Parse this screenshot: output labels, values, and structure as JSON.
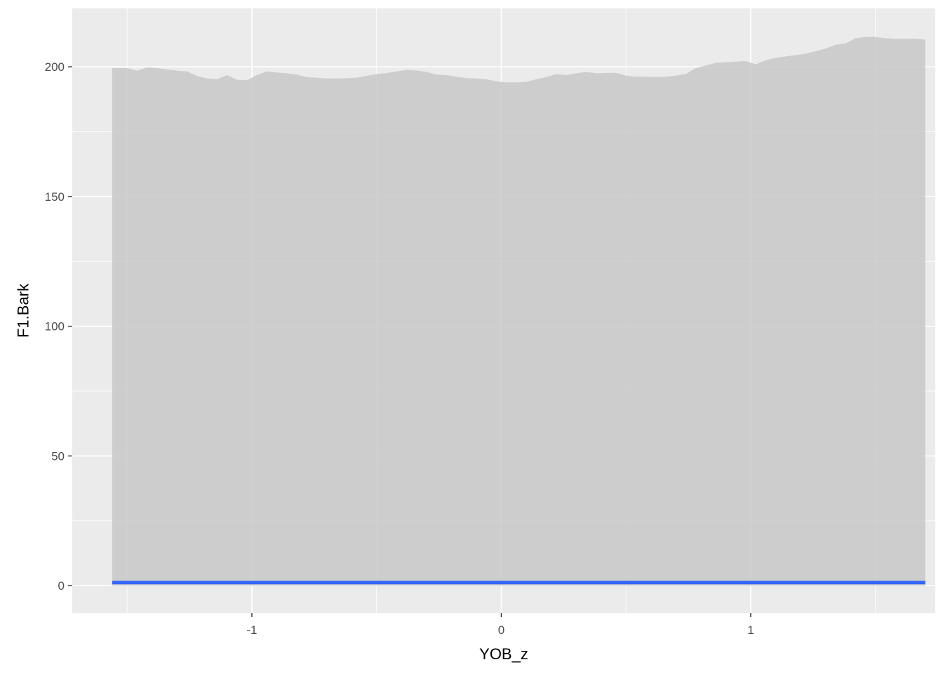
{
  "chart_data": {
    "type": "area",
    "title": "",
    "xlabel": "YOB_z",
    "ylabel": "F1.Bark",
    "xlim": [
      -1.72,
      1.74
    ],
    "ylim": [
      -10.5,
      222.5
    ],
    "x_ticks": [
      -1,
      0,
      1
    ],
    "x_tick_labels": [
      "-1",
      "0",
      "1"
    ],
    "y_ticks": [
      0,
      50,
      100,
      150,
      200
    ],
    "y_tick_labels": [
      "0",
      "50",
      "100",
      "150",
      "200"
    ],
    "grid": true,
    "legend": "none",
    "colors": {
      "panel_background": "#ebebeb",
      "grid_major": "#ffffff",
      "ribbon": "#c8c8c8",
      "line": "#3366ff"
    },
    "series": [
      {
        "kind": "ribbon",
        "x": [
          -1.56,
          -1.5,
          -1.46,
          -1.42,
          -1.38,
          -1.34,
          -1.3,
          -1.26,
          -1.22,
          -1.18,
          -1.14,
          -1.1,
          -1.06,
          -1.02,
          -0.98,
          -0.94,
          -0.9,
          -0.86,
          -0.82,
          -0.78,
          -0.74,
          -0.7,
          -0.66,
          -0.62,
          -0.58,
          -0.54,
          -0.5,
          -0.46,
          -0.42,
          -0.38,
          -0.34,
          -0.3,
          -0.26,
          -0.22,
          -0.18,
          -0.14,
          -0.1,
          -0.06,
          -0.02,
          0.02,
          0.06,
          0.1,
          0.14,
          0.18,
          0.22,
          0.26,
          0.3,
          0.34,
          0.38,
          0.42,
          0.46,
          0.5,
          0.54,
          0.58,
          0.62,
          0.66,
          0.7,
          0.74,
          0.78,
          0.82,
          0.86,
          0.9,
          0.94,
          0.98,
          1.02,
          1.06,
          1.1,
          1.14,
          1.18,
          1.22,
          1.26,
          1.3,
          1.34,
          1.38,
          1.42,
          1.46,
          1.5,
          1.54,
          1.58,
          1.62,
          1.66,
          1.7
        ],
        "upper": [
          199.5,
          199.5,
          198.5,
          199.8,
          199.5,
          199.0,
          198.5,
          198.2,
          196.5,
          195.5,
          195.2,
          196.8,
          195.0,
          194.8,
          196.8,
          198.2,
          197.8,
          197.5,
          197.0,
          196.0,
          195.8,
          195.5,
          195.5,
          195.6,
          195.8,
          196.5,
          197.2,
          197.6,
          198.2,
          198.8,
          198.6,
          198.0,
          197.0,
          196.8,
          196.2,
          195.6,
          195.5,
          195.2,
          194.4,
          194.0,
          194.0,
          194.2,
          195.2,
          196.0,
          197.2,
          196.8,
          197.5,
          198.0,
          197.5,
          197.6,
          197.7,
          196.6,
          196.2,
          196.2,
          196.0,
          196.2,
          196.6,
          197.2,
          199.5,
          200.5,
          201.5,
          201.8,
          202.0,
          202.2,
          201.0,
          202.5,
          203.5,
          204.0,
          204.5,
          205.0,
          206.0,
          207.0,
          208.5,
          209.0,
          211.0,
          211.5,
          211.5,
          211.0,
          210.8,
          210.8,
          210.8,
          210.5
        ],
        "lower": [
          0,
          0,
          0,
          0,
          0,
          0,
          0,
          0,
          0,
          0,
          0,
          0,
          0,
          0,
          0,
          0,
          0,
          0,
          0,
          0,
          0,
          0,
          0,
          0,
          0,
          0,
          0,
          0,
          0,
          0,
          0,
          0,
          0,
          0,
          0,
          0,
          0,
          0,
          0,
          0,
          0,
          0,
          0,
          0,
          0,
          0,
          0,
          0,
          0,
          0,
          0,
          0,
          0,
          0,
          0,
          0,
          0,
          0,
          0,
          0,
          0,
          0,
          0,
          0,
          0,
          0,
          0,
          0,
          0,
          0,
          0,
          0,
          0,
          0,
          0,
          0,
          0,
          0,
          0,
          0,
          0,
          0
        ]
      },
      {
        "kind": "line",
        "x": [
          -1.56,
          1.7
        ],
        "y": [
          1.2,
          1.2
        ]
      }
    ]
  }
}
